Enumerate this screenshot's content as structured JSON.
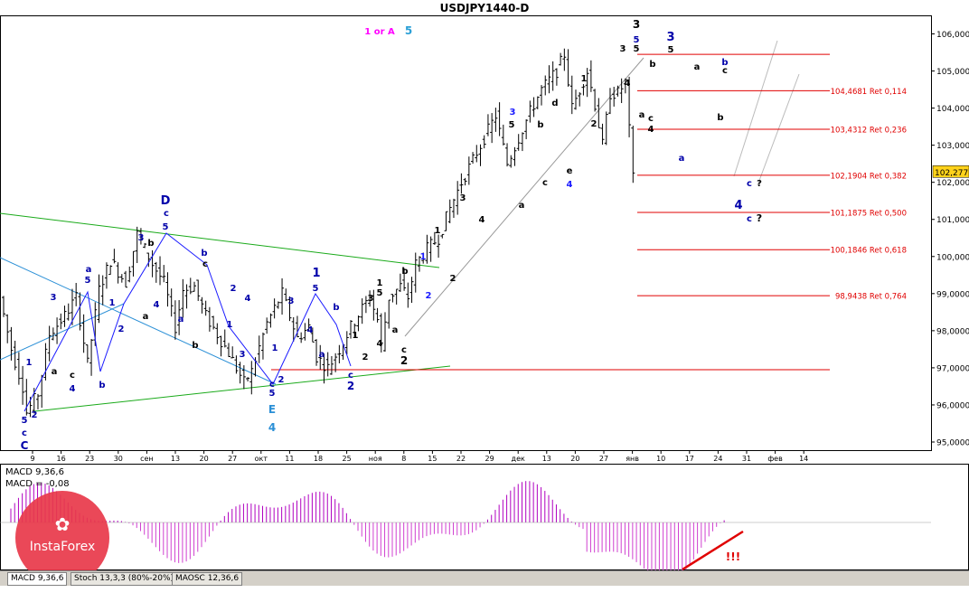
{
  "title": "USDJPY1440-D",
  "header_labels": {
    "wave_label": "1 or A",
    "wave_num": "5"
  },
  "price_tag": "102,277",
  "colors": {
    "magenta": "#ff00ff",
    "blue": "#1a1aff",
    "darkblue": "#0000aa",
    "cyan": "#2a9fd6",
    "red": "#e00000",
    "green": "#1aaa1a",
    "tealblue": "#2a8fd6",
    "tag": "#ffd21a"
  },
  "chart_data": [
    {
      "type": "candlestick",
      "title": "USDJPY1440-D",
      "ylim": [
        94.8,
        106.4
      ],
      "y_ticks": [
        "106,0000",
        "105,0000",
        "104,0000",
        "103,0000",
        "102,0000",
        "101,0000",
        "100,0000",
        "99,0000",
        "98,0000",
        "97,0000",
        "96,0000",
        "95,0000"
      ],
      "y_tick_values": [
        106,
        105,
        104,
        103,
        102,
        101,
        100,
        99,
        98,
        97,
        96,
        95
      ],
      "x_ticks": [
        "9",
        "16",
        "23",
        "30",
        "сен",
        "13",
        "20",
        "27",
        "окт",
        "11",
        "18",
        "25",
        "ноя",
        "8",
        "15",
        "22",
        "29",
        "дек",
        "13",
        "20",
        "27",
        "янв",
        "10",
        "17",
        "24",
        "31",
        "фев",
        "14"
      ],
      "current_price": 102.277,
      "fib_levels": [
        {
          "value": 105.45,
          "label": ""
        },
        {
          "value": 104.4681,
          "label": "104,4681 Ret 0,114"
        },
        {
          "value": 103.4312,
          "label": "103,4312 Ret 0,236"
        },
        {
          "value": 102.1904,
          "label": "102,1904 Ret 0,382"
        },
        {
          "value": 101.1875,
          "label": "101,1875 Ret 0,500"
        },
        {
          "value": 100.1846,
          "label": "100,1846 Ret 0,618"
        },
        {
          "value": 98.9438,
          "label": "98,9438 Ret 0,764"
        },
        {
          "value": 96.95,
          "label": ""
        }
      ],
      "path": [
        [
          0,
          98.9
        ],
        [
          3,
          97.5
        ],
        [
          6,
          96.5
        ],
        [
          7,
          95.8
        ],
        [
          10,
          96.3
        ],
        [
          13,
          97.9
        ],
        [
          17,
          98.4
        ],
        [
          20,
          98.9
        ],
        [
          23,
          97.1
        ],
        [
          26,
          99.1
        ],
        [
          29,
          99.9
        ],
        [
          33,
          99.3
        ],
        [
          36,
          100.6
        ],
        [
          40,
          99.8
        ],
        [
          43,
          99.3
        ],
        [
          46,
          98.1
        ],
        [
          48,
          99.1
        ],
        [
          51,
          99.2
        ],
        [
          54,
          98.4
        ],
        [
          57,
          97.9
        ],
        [
          60,
          97.4
        ],
        [
          64,
          96.6
        ],
        [
          66,
          96.9
        ],
        [
          70,
          98.2
        ],
        [
          74,
          99.0
        ],
        [
          78,
          97.8
        ],
        [
          81,
          98.1
        ],
        [
          83,
          97.3
        ],
        [
          86,
          97.0
        ],
        [
          89,
          97.5
        ],
        [
          92,
          98.1
        ],
        [
          95,
          98.6
        ],
        [
          97,
          98.9
        ],
        [
          99,
          98.3
        ],
        [
          100,
          97.6
        ],
        [
          102,
          98.9
        ],
        [
          105,
          99.2
        ],
        [
          107,
          98.9
        ],
        [
          109,
          99.8
        ],
        [
          112,
          100.2
        ],
        [
          115,
          100.5
        ],
        [
          118,
          101.3
        ],
        [
          121,
          102.0
        ],
        [
          124,
          102.6
        ],
        [
          127,
          103.2
        ],
        [
          130,
          103.8
        ],
        [
          133,
          102.5
        ],
        [
          136,
          103.2
        ],
        [
          139,
          103.9
        ],
        [
          142,
          104.5
        ],
        [
          146,
          105.0
        ],
        [
          148,
          105.45
        ],
        [
          150,
          104.0
        ],
        [
          152,
          104.5
        ],
        [
          154,
          105.0
        ],
        [
          156,
          104.1
        ],
        [
          158,
          103.0
        ],
        [
          160,
          104.4
        ],
        [
          162,
          104.4
        ],
        [
          164,
          104.7
        ],
        [
          166,
          102.1
        ]
      ],
      "projections": [
        {
          "name": "c ?",
          "points": [
            [
              166,
              102.1
            ],
            [
              170,
              101.3
            ],
            [
              173,
              102.0
            ]
          ]
        },
        {
          "name": "c ?",
          "points": [
            [
              166,
              102.1
            ],
            [
              172,
              101.1
            ],
            [
              178,
              102.5
            ]
          ]
        }
      ]
    },
    {
      "type": "bar",
      "title": "MACD 9,36,6",
      "series_label": "MACD = -0,08",
      "note": "!!!",
      "ylim": [
        -1.6,
        1.6
      ]
    }
  ],
  "wave_labels": [
    {
      "t": "D",
      "c": "darkblue",
      "x": 183,
      "y": 226,
      "s": 13
    },
    {
      "t": "c",
      "c": "darkblue",
      "x": 184,
      "y": 239,
      "s": 10
    },
    {
      "t": "5",
      "c": "darkblue",
      "x": 183,
      "y": 254,
      "s": 10
    },
    {
      "t": "3",
      "c": "darkblue",
      "x": 156,
      "y": 266,
      "s": 10
    },
    {
      "t": "b",
      "c": "black",
      "x": 167,
      "y": 272,
      "s": 10
    },
    {
      "t": "a",
      "c": "darkblue",
      "x": 98,
      "y": 301,
      "s": 10
    },
    {
      "t": "5",
      "c": "darkblue",
      "x": 97,
      "y": 313,
      "s": 10
    },
    {
      "t": "3",
      "c": "darkblue",
      "x": 59,
      "y": 332,
      "s": 10
    },
    {
      "t": "1",
      "c": "darkblue",
      "x": 124,
      "y": 338,
      "s": 10
    },
    {
      "t": "2",
      "c": "darkblue",
      "x": 134,
      "y": 367,
      "s": 10
    },
    {
      "t": "a",
      "c": "black",
      "x": 161,
      "y": 353,
      "s": 10
    },
    {
      "t": "4",
      "c": "darkblue",
      "x": 173,
      "y": 340,
      "s": 10
    },
    {
      "t": "b",
      "c": "darkblue",
      "x": 226,
      "y": 283,
      "s": 10
    },
    {
      "t": "c",
      "c": "black",
      "x": 227,
      "y": 295,
      "s": 10
    },
    {
      "t": "a",
      "c": "darkblue",
      "x": 200,
      "y": 356,
      "s": 10
    },
    {
      "t": "b",
      "c": "black",
      "x": 216,
      "y": 385,
      "s": 10
    },
    {
      "t": "2",
      "c": "darkblue",
      "x": 258,
      "y": 322,
      "s": 10
    },
    {
      "t": "4",
      "c": "darkblue",
      "x": 274,
      "y": 333,
      "s": 10
    },
    {
      "t": "1",
      "c": "darkblue",
      "x": 254,
      "y": 362,
      "s": 10
    },
    {
      "t": "3",
      "c": "darkblue",
      "x": 268,
      "y": 395,
      "s": 10
    },
    {
      "t": "1",
      "c": "darkblue",
      "x": 32,
      "y": 404,
      "s": 10
    },
    {
      "t": "a",
      "c": "black",
      "x": 60,
      "y": 414,
      "s": 10
    },
    {
      "t": "c",
      "c": "black",
      "x": 80,
      "y": 418,
      "s": 10
    },
    {
      "t": "4",
      "c": "darkblue",
      "x": 80,
      "y": 433,
      "s": 10
    },
    {
      "t": "b",
      "c": "darkblue",
      "x": 113,
      "y": 429,
      "s": 10
    },
    {
      "t": "2",
      "c": "darkblue",
      "x": 38,
      "y": 462,
      "s": 10
    },
    {
      "t": "5",
      "c": "darkblue",
      "x": 27,
      "y": 468,
      "s": 10
    },
    {
      "t": "c",
      "c": "darkblue",
      "x": 27,
      "y": 482,
      "s": 10
    },
    {
      "t": "C",
      "c": "darkblue",
      "x": 27,
      "y": 497,
      "s": 12
    },
    {
      "t": "1",
      "c": "darkblue",
      "x": 304,
      "y": 388,
      "s": 10
    },
    {
      "t": "2",
      "c": "darkblue",
      "x": 311,
      "y": 423,
      "s": 10
    },
    {
      "t": "c",
      "c": "darkblue",
      "x": 301,
      "y": 428,
      "s": 10
    },
    {
      "t": "5",
      "c": "darkblue",
      "x": 301,
      "y": 438,
      "s": 10
    },
    {
      "t": "E",
      "c": "tealblue",
      "x": 301,
      "y": 457,
      "s": 12
    },
    {
      "t": "4",
      "c": "tealblue",
      "x": 301,
      "y": 477,
      "s": 12
    },
    {
      "t": "1",
      "c": "darkblue",
      "x": 350,
      "y": 306,
      "s": 13
    },
    {
      "t": "5",
      "c": "darkblue",
      "x": 349,
      "y": 322,
      "s": 10
    },
    {
      "t": "3",
      "c": "darkblue",
      "x": 322,
      "y": 336,
      "s": 10
    },
    {
      "t": "4",
      "c": "darkblue",
      "x": 343,
      "y": 368,
      "s": 10
    },
    {
      "t": "b",
      "c": "darkblue",
      "x": 372,
      "y": 343,
      "s": 10
    },
    {
      "t": "a",
      "c": "darkblue",
      "x": 356,
      "y": 395,
      "s": 10
    },
    {
      "t": "c",
      "c": "darkblue",
      "x": 388,
      "y": 418,
      "s": 10
    },
    {
      "t": "2",
      "c": "darkblue",
      "x": 388,
      "y": 431,
      "s": 12
    },
    {
      "t": "1",
      "c": "black",
      "x": 393,
      "y": 374,
      "s": 10
    },
    {
      "t": "2",
      "c": "black",
      "x": 404,
      "y": 398,
      "s": 10
    },
    {
      "t": "3",
      "c": "black",
      "x": 410,
      "y": 333,
      "s": 10
    },
    {
      "t": "1",
      "c": "black",
      "x": 420,
      "y": 316,
      "s": 10
    },
    {
      "t": "5",
      "c": "black",
      "x": 420,
      "y": 327,
      "s": 10
    },
    {
      "t": "4",
      "c": "black",
      "x": 420,
      "y": 383,
      "s": 10
    },
    {
      "t": "a",
      "c": "black",
      "x": 437,
      "y": 368,
      "s": 10
    },
    {
      "t": "b",
      "c": "black",
      "x": 448,
      "y": 303,
      "s": 10
    },
    {
      "t": "c",
      "c": "black",
      "x": 447,
      "y": 390,
      "s": 10
    },
    {
      "t": "2",
      "c": "black",
      "x": 447,
      "y": 403,
      "s": 12
    },
    {
      "t": "1",
      "c": "blue",
      "x": 468,
      "y": 287,
      "s": 10
    },
    {
      "t": "2",
      "c": "blue",
      "x": 474,
      "y": 330,
      "s": 10
    },
    {
      "t": "1",
      "c": "black",
      "x": 484,
      "y": 258,
      "s": 10
    },
    {
      "t": "2",
      "c": "black",
      "x": 501,
      "y": 311,
      "s": 10
    },
    {
      "t": "3",
      "c": "black",
      "x": 512,
      "y": 222,
      "s": 10
    },
    {
      "t": "4",
      "c": "black",
      "x": 533,
      "y": 246,
      "s": 10
    },
    {
      "t": "a",
      "c": "black",
      "x": 577,
      "y": 230,
      "s": 10
    },
    {
      "t": "3",
      "c": "blue",
      "x": 567,
      "y": 127,
      "s": 10
    },
    {
      "t": "5",
      "c": "black",
      "x": 566,
      "y": 141,
      "s": 10
    },
    {
      "t": "b",
      "c": "black",
      "x": 598,
      "y": 141,
      "s": 10
    },
    {
      "t": "c",
      "c": "black",
      "x": 603,
      "y": 205,
      "s": 10
    },
    {
      "t": "d",
      "c": "black",
      "x": 614,
      "y": 117,
      "s": 10
    },
    {
      "t": "e",
      "c": "black",
      "x": 630,
      "y": 192,
      "s": 10
    },
    {
      "t": "4",
      "c": "blue",
      "x": 630,
      "y": 207,
      "s": 10
    },
    {
      "t": "1",
      "c": "black",
      "x": 646,
      "y": 90,
      "s": 10
    },
    {
      "t": "2",
      "c": "black",
      "x": 657,
      "y": 140,
      "s": 10
    },
    {
      "t": "3",
      "c": "black",
      "x": 689,
      "y": 57,
      "s": 10
    },
    {
      "t": "4",
      "c": "black",
      "x": 694,
      "y": 95,
      "s": 10
    },
    {
      "t": "3",
      "c": "black",
      "x": 704,
      "y": 31,
      "s": 12
    },
    {
      "t": "5",
      "c": "darkblue",
      "x": 704,
      "y": 47,
      "s": 10
    },
    {
      "t": "5",
      "c": "black",
      "x": 704,
      "y": 57,
      "s": 10
    },
    {
      "t": "3",
      "c": "darkblue",
      "x": 742,
      "y": 45,
      "s": 13
    },
    {
      "t": "5",
      "c": "black",
      "x": 742,
      "y": 58,
      "s": 10
    },
    {
      "t": "b",
      "c": "black",
      "x": 722,
      "y": 74,
      "s": 10
    },
    {
      "t": "a",
      "c": "black",
      "x": 710,
      "y": 130,
      "s": 10
    },
    {
      "t": "c",
      "c": "black",
      "x": 720,
      "y": 134,
      "s": 10
    },
    {
      "t": "4",
      "c": "black",
      "x": 720,
      "y": 146,
      "s": 10
    },
    {
      "t": "a",
      "c": "black",
      "x": 771,
      "y": 77,
      "s": 10
    },
    {
      "t": "a",
      "c": "darkblue",
      "x": 754,
      "y": 178,
      "s": 10
    },
    {
      "t": "b",
      "c": "darkblue",
      "x": 802,
      "y": 72,
      "s": 10
    },
    {
      "t": "c",
      "c": "black",
      "x": 802,
      "y": 81,
      "s": 10
    },
    {
      "t": "b",
      "c": "black",
      "x": 797,
      "y": 133,
      "s": 10
    },
    {
      "t": "4",
      "c": "darkblue",
      "x": 817,
      "y": 231,
      "s": 13
    },
    {
      "t": "c",
      "c": "darkblue",
      "x": 829,
      "y": 206,
      "s": 10
    },
    {
      "t": "?",
      "c": "black",
      "x": 840,
      "y": 206,
      "s": 10
    },
    {
      "t": "c",
      "c": "darkblue",
      "x": 829,
      "y": 245,
      "s": 10
    },
    {
      "t": "?",
      "c": "black",
      "x": 840,
      "y": 245,
      "s": 11
    }
  ],
  "tabs": [
    "MACD 9,36,6",
    "Stoch 13,3,3 (80%-20%)",
    "MAOSC 12,36,6"
  ],
  "watermark": "InstaForex"
}
